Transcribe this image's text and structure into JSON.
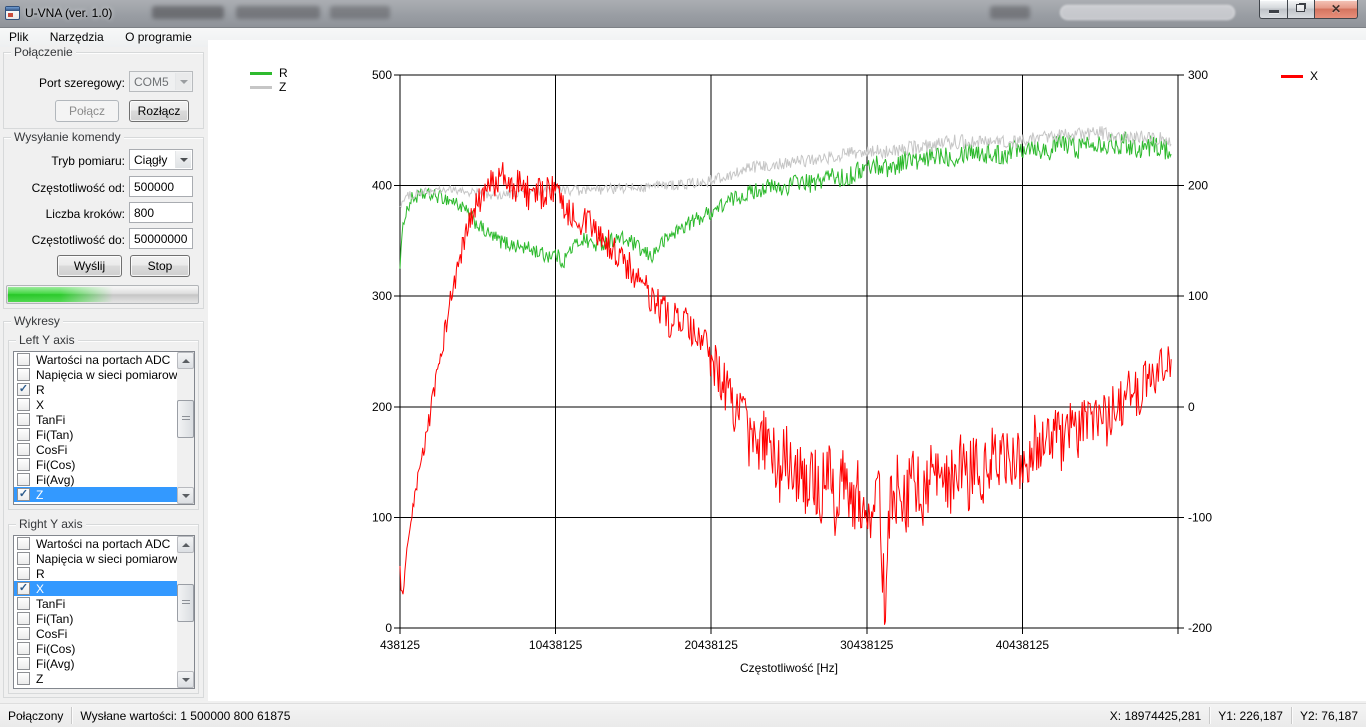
{
  "window": {
    "title": "U-VNA (ver. 1.0)"
  },
  "menu": {
    "items": [
      "Plik",
      "Narzędzia",
      "O programie"
    ]
  },
  "connection": {
    "group_label": "Połączenie",
    "port_label": "Port szeregowy:",
    "port_value": "COM5",
    "connect_label": "Połącz",
    "disconnect_label": "Rozłącz"
  },
  "command": {
    "group_label": "Wysyłanie komendy",
    "mode_label": "Tryb pomiaru:",
    "mode_value": "Ciągły",
    "freq_from_label": "Częstotliwość od:",
    "freq_from_value": "500000",
    "steps_label": "Liczba kroków:",
    "steps_value": "800",
    "freq_to_label": "Częstotliwość do:",
    "freq_to_value": "50000000",
    "send_label": "Wyślij",
    "stop_label": "Stop",
    "progress_fill_percent": 55
  },
  "charts_panel": {
    "group_label": "Wykresy",
    "left_group_label": "Left Y axis",
    "right_group_label": "Right Y axis",
    "left_items": [
      {
        "label": "Wartości na portach ADC",
        "checked": false,
        "selected": false
      },
      {
        "label": "Napięcia w sieci pomiarowej",
        "checked": false,
        "selected": false
      },
      {
        "label": "R",
        "checked": true,
        "selected": false
      },
      {
        "label": "X",
        "checked": false,
        "selected": false
      },
      {
        "label": "TanFi",
        "checked": false,
        "selected": false
      },
      {
        "label": "Fi(Tan)",
        "checked": false,
        "selected": false
      },
      {
        "label": "CosFi",
        "checked": false,
        "selected": false
      },
      {
        "label": "Fi(Cos)",
        "checked": false,
        "selected": false
      },
      {
        "label": "Fi(Avg)",
        "checked": false,
        "selected": false
      },
      {
        "label": "Z",
        "checked": true,
        "selected": true
      }
    ],
    "right_items": [
      {
        "label": "Wartości na portach ADC",
        "checked": false,
        "selected": false
      },
      {
        "label": "Napięcia w sieci pomiarowej",
        "checked": false,
        "selected": false
      },
      {
        "label": "R",
        "checked": false,
        "selected": false
      },
      {
        "label": "X",
        "checked": true,
        "selected": true
      },
      {
        "label": "TanFi",
        "checked": false,
        "selected": false
      },
      {
        "label": "Fi(Tan)",
        "checked": false,
        "selected": false
      },
      {
        "label": "CosFi",
        "checked": false,
        "selected": false
      },
      {
        "label": "Fi(Cos)",
        "checked": false,
        "selected": false
      },
      {
        "label": "Fi(Avg)",
        "checked": false,
        "selected": false
      },
      {
        "label": "Z",
        "checked": false,
        "selected": false
      }
    ]
  },
  "chart_data": {
    "type": "line",
    "xlabel": "Częstotliwość [Hz]",
    "x_range": [
      438125,
      50438125
    ],
    "x_data_max": 50000000,
    "x_ticks": [
      438125,
      10438125,
      20438125,
      30438125,
      40438125
    ],
    "left_axis": {
      "range": [
        0,
        500
      ],
      "ticks": [
        500,
        400,
        300,
        200,
        100,
        0
      ]
    },
    "right_axis": {
      "range": [
        -200,
        300
      ],
      "ticks": [
        300,
        200,
        100,
        0,
        -100,
        -200
      ]
    },
    "grid": true,
    "legend": {
      "left": [
        "R",
        "Z"
      ],
      "right": [
        "X"
      ]
    },
    "series": [
      {
        "name": "R",
        "axis": "left",
        "color": "#2eba2e",
        "noise_profile": [
          [
            438125,
            6
          ],
          [
            10000000,
            7
          ],
          [
            20000000,
            7
          ],
          [
            30000000,
            9
          ],
          [
            40000000,
            10
          ],
          [
            50000000,
            10
          ]
        ],
        "keypoints": [
          [
            438125,
            330
          ],
          [
            700000,
            372
          ],
          [
            1200000,
            388
          ],
          [
            2000000,
            392
          ],
          [
            3000000,
            390
          ],
          [
            4000000,
            385
          ],
          [
            4600000,
            378
          ],
          [
            5200000,
            368
          ],
          [
            6000000,
            357
          ],
          [
            7000000,
            349
          ],
          [
            8000000,
            345
          ],
          [
            9000000,
            342
          ],
          [
            9700000,
            337
          ],
          [
            10438125,
            338
          ],
          [
            10900000,
            331
          ],
          [
            11500000,
            344
          ],
          [
            12200000,
            352
          ],
          [
            13000000,
            346
          ],
          [
            13800000,
            350
          ],
          [
            14600000,
            352
          ],
          [
            15400000,
            348
          ],
          [
            16000000,
            340
          ],
          [
            16600000,
            336
          ],
          [
            17200000,
            347
          ],
          [
            18000000,
            357
          ],
          [
            19000000,
            366
          ],
          [
            20000000,
            373
          ],
          [
            21000000,
            381
          ],
          [
            22000000,
            389
          ],
          [
            23000000,
            394
          ],
          [
            24000000,
            399
          ],
          [
            25000000,
            397
          ],
          [
            26000000,
            404
          ],
          [
            27000000,
            401
          ],
          [
            28000000,
            409
          ],
          [
            29000000,
            406
          ],
          [
            30000000,
            414
          ],
          [
            31000000,
            419
          ],
          [
            32000000,
            416
          ],
          [
            33000000,
            424
          ],
          [
            34000000,
            421
          ],
          [
            35000000,
            429
          ],
          [
            36000000,
            426
          ],
          [
            37000000,
            433
          ],
          [
            38000000,
            429
          ],
          [
            39000000,
            427
          ],
          [
            40000000,
            434
          ],
          [
            41000000,
            437
          ],
          [
            42000000,
            431
          ],
          [
            43000000,
            439
          ],
          [
            44000000,
            434
          ],
          [
            45000000,
            441
          ],
          [
            46000000,
            437
          ],
          [
            47000000,
            439
          ],
          [
            48000000,
            434
          ],
          [
            49000000,
            437
          ],
          [
            50000000,
            430
          ]
        ]
      },
      {
        "name": "Z",
        "axis": "left",
        "color": "#c6c6c6",
        "noise_profile": [
          [
            438125,
            4
          ],
          [
            20000000,
            5
          ],
          [
            35000000,
            7
          ],
          [
            50000000,
            6
          ]
        ],
        "keypoints": [
          [
            438125,
            383
          ],
          [
            1000000,
            391
          ],
          [
            2000000,
            394
          ],
          [
            3500000,
            396
          ],
          [
            5000000,
            394
          ],
          [
            6500000,
            391
          ],
          [
            8000000,
            393
          ],
          [
            9500000,
            395
          ],
          [
            11000000,
            396
          ],
          [
            12500000,
            395
          ],
          [
            14000000,
            397
          ],
          [
            15500000,
            398
          ],
          [
            17000000,
            400
          ],
          [
            18500000,
            401
          ],
          [
            20000000,
            403
          ],
          [
            21500000,
            409
          ],
          [
            23000000,
            416
          ],
          [
            24500000,
            419
          ],
          [
            26000000,
            422
          ],
          [
            27500000,
            424
          ],
          [
            29000000,
            428
          ],
          [
            30500000,
            430
          ],
          [
            32000000,
            431
          ],
          [
            33500000,
            434
          ],
          [
            35000000,
            438
          ],
          [
            36500000,
            440
          ],
          [
            38000000,
            441
          ],
          [
            39500000,
            438
          ],
          [
            41000000,
            443
          ],
          [
            42500000,
            444
          ],
          [
            44000000,
            446
          ],
          [
            45500000,
            448
          ],
          [
            47000000,
            443
          ],
          [
            48500000,
            444
          ],
          [
            50000000,
            441
          ]
        ]
      },
      {
        "name": "X",
        "axis": "right",
        "color": "#ff0000",
        "noise_profile": [
          [
            438125,
            6
          ],
          [
            2000000,
            8
          ],
          [
            5000000,
            14
          ],
          [
            9000000,
            16
          ],
          [
            14000000,
            14
          ],
          [
            20000000,
            18
          ],
          [
            23000000,
            30
          ],
          [
            27000000,
            35
          ],
          [
            31000000,
            35
          ],
          [
            36000000,
            32
          ],
          [
            40000000,
            30
          ],
          [
            44000000,
            25
          ],
          [
            48000000,
            22
          ],
          [
            50000000,
            20
          ]
        ],
        "keypoints": [
          [
            438125,
            -148
          ],
          [
            560000,
            -172
          ],
          [
            700000,
            -160
          ],
          [
            900000,
            -132
          ],
          [
            1200000,
            -100
          ],
          [
            1600000,
            -65
          ],
          [
            2000000,
            -35
          ],
          [
            2400000,
            -5
          ],
          [
            2900000,
            35
          ],
          [
            3400000,
            75
          ],
          [
            3900000,
            110
          ],
          [
            4400000,
            140
          ],
          [
            4900000,
            165
          ],
          [
            5400000,
            182
          ],
          [
            5900000,
            193
          ],
          [
            6400000,
            203
          ],
          [
            6900000,
            210
          ],
          [
            7300000,
            202
          ],
          [
            7700000,
            194
          ],
          [
            8100000,
            204
          ],
          [
            8500000,
            197
          ],
          [
            9000000,
            188
          ],
          [
            9500000,
            193
          ],
          [
            10000000,
            197
          ],
          [
            10438125,
            192
          ],
          [
            10900000,
            184
          ],
          [
            11400000,
            176
          ],
          [
            11900000,
            171
          ],
          [
            12400000,
            166
          ],
          [
            12900000,
            159
          ],
          [
            13400000,
            151
          ],
          [
            13900000,
            146
          ],
          [
            14400000,
            137
          ],
          [
            14900000,
            131
          ],
          [
            15400000,
            121
          ],
          [
            15900000,
            112
          ],
          [
            16400000,
            101
          ],
          [
            16900000,
            92
          ],
          [
            17400000,
            86
          ],
          [
            17900000,
            76
          ],
          [
            18400000,
            81
          ],
          [
            18900000,
            71
          ],
          [
            19400000,
            61
          ],
          [
            19900000,
            56
          ],
          [
            20400000,
            46
          ],
          [
            20900000,
            31
          ],
          [
            21400000,
            16
          ],
          [
            21900000,
            1
          ],
          [
            22400000,
            -12
          ],
          [
            22900000,
            -27
          ],
          [
            23400000,
            -38
          ],
          [
            23900000,
            -28
          ],
          [
            24400000,
            -48
          ],
          [
            24900000,
            -58
          ],
          [
            25400000,
            -42
          ],
          [
            25900000,
            -62
          ],
          [
            26400000,
            -72
          ],
          [
            26900000,
            -56
          ],
          [
            27400000,
            -78
          ],
          [
            27900000,
            -64
          ],
          [
            28400000,
            -82
          ],
          [
            28900000,
            -68
          ],
          [
            29400000,
            -86
          ],
          [
            29900000,
            -74
          ],
          [
            30400000,
            -92
          ],
          [
            30900000,
            -78
          ],
          [
            31300000,
            -96
          ],
          [
            31600000,
            -185
          ],
          [
            31900000,
            -88
          ],
          [
            32400000,
            -72
          ],
          [
            32900000,
            -84
          ],
          [
            33400000,
            -68
          ],
          [
            33900000,
            -80
          ],
          [
            34400000,
            -62
          ],
          [
            34900000,
            -74
          ],
          [
            35400000,
            -58
          ],
          [
            35900000,
            -70
          ],
          [
            36400000,
            -54
          ],
          [
            36900000,
            -66
          ],
          [
            37400000,
            -48
          ],
          [
            37900000,
            -60
          ],
          [
            38400000,
            -44
          ],
          [
            38900000,
            -56
          ],
          [
            39400000,
            -48
          ],
          [
            39900000,
            -38
          ],
          [
            40400000,
            -54
          ],
          [
            40900000,
            -44
          ],
          [
            41400000,
            -28
          ],
          [
            41900000,
            -40
          ],
          [
            42400000,
            -24
          ],
          [
            42900000,
            -34
          ],
          [
            43400000,
            -18
          ],
          [
            43900000,
            -28
          ],
          [
            44400000,
            -8
          ],
          [
            44900000,
            -18
          ],
          [
            45400000,
            -4
          ],
          [
            45900000,
            -14
          ],
          [
            46400000,
            6
          ],
          [
            46900000,
            1
          ],
          [
            47400000,
            16
          ],
          [
            47900000,
            11
          ],
          [
            48400000,
            26
          ],
          [
            48900000,
            21
          ],
          [
            49400000,
            36
          ],
          [
            49800000,
            42
          ],
          [
            50000000,
            46
          ]
        ]
      }
    ]
  },
  "status_bar": {
    "connection": "Połączony",
    "sent": "Wysłane wartości: 1 500000 800 61875",
    "x": "X: 18974425,281",
    "y1": "Y1: 226,187",
    "y2": "Y2: 76,187"
  }
}
